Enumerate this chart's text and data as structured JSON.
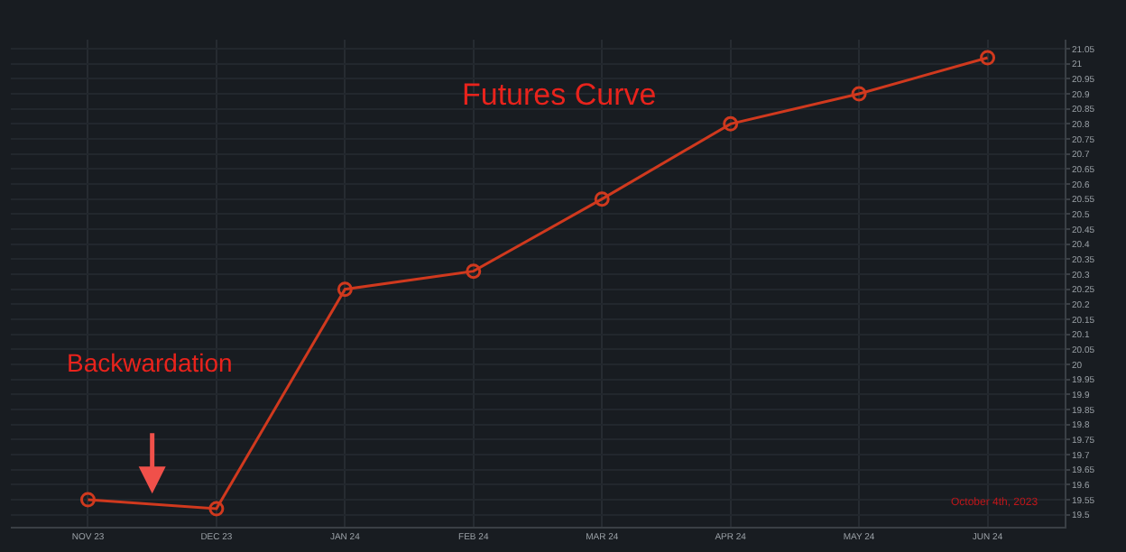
{
  "chart_data": {
    "type": "line",
    "title": "Futures Curve",
    "categories": [
      "NOV 23",
      "DEC 23",
      "JAN 24",
      "FEB 24",
      "MAR 24",
      "APR 24",
      "MAY 24",
      "JUN 24"
    ],
    "series": [
      {
        "color": "#d0391e",
        "values": [
          19.55,
          19.52,
          20.25,
          20.31,
          20.55,
          20.8,
          20.9,
          21.02
        ]
      }
    ],
    "ylim": [
      19.46,
      21.08
    ],
    "yticks": [
      19.5,
      19.55,
      19.6,
      19.65,
      19.7,
      19.75,
      19.8,
      19.85,
      19.9,
      19.95,
      20,
      20.05,
      20.1,
      20.15,
      20.2,
      20.25,
      20.3,
      20.35,
      20.4,
      20.45,
      20.5,
      20.55,
      20.6,
      20.65,
      20.7,
      20.75,
      20.8,
      20.85,
      20.9,
      20.95,
      21,
      21.05
    ],
    "grid": true,
    "marker": "circle",
    "line_style": "solid",
    "annotations": [
      "Backwardation",
      "October 4th, 2023"
    ]
  }
}
